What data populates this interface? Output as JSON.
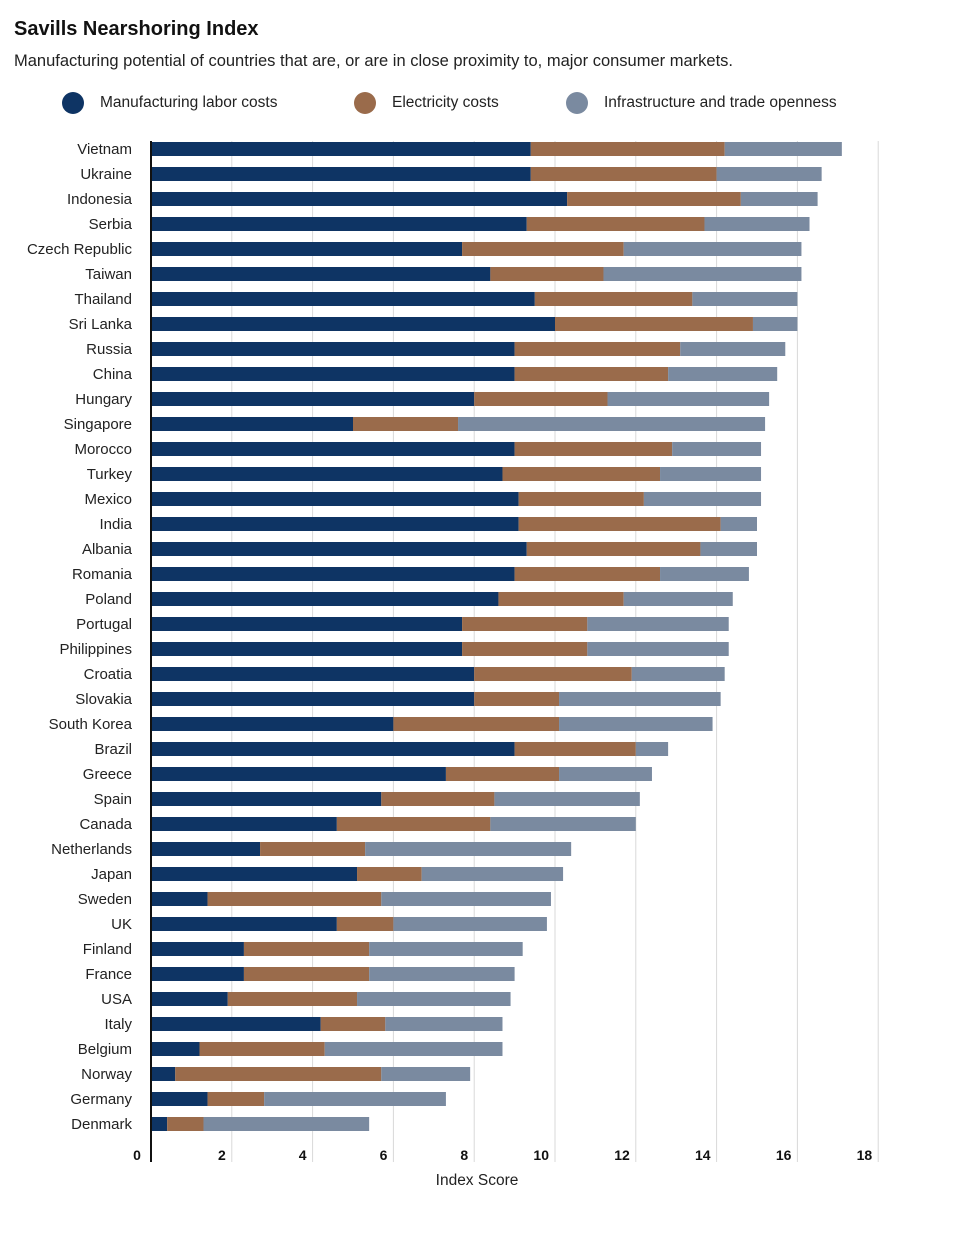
{
  "chart_data": {
    "type": "bar",
    "orientation": "horizontal",
    "stacked": true,
    "title": "Savills Nearshoring Index",
    "subtitle": "Manufacturing potential of countries that are, or are in close proximity to, major consumer markets.",
    "xlabel": "Index Score",
    "ylabel": "",
    "xlim": [
      0,
      18
    ],
    "xticks": [
      "0",
      "2",
      "4",
      "6",
      "8",
      "10",
      "12",
      "14",
      "16",
      "18"
    ],
    "grid": "vertical",
    "legend_position": "top",
    "categories": [
      "Vietnam",
      "Ukraine",
      "Indonesia",
      "Serbia",
      "Czech Republic",
      "Taiwan",
      "Thailand",
      "Sri Lanka",
      "Russia",
      "China",
      "Hungary",
      "Singapore",
      "Morocco",
      "Turkey",
      "Mexico",
      "India",
      "Albania",
      "Romania",
      "Poland",
      "Portugal",
      "Philippines",
      "Croatia",
      "Slovakia",
      "South Korea",
      "Brazil",
      "Greece",
      "Spain",
      "Canada",
      "Netherlands",
      "Japan",
      "Sweden",
      "UK",
      "Finland",
      "France",
      "USA",
      "Italy",
      "Belgium",
      "Norway",
      "Germany",
      "Denmark"
    ],
    "series": [
      {
        "name": "Manufacturing labor costs",
        "color": "#0e3464",
        "values": [
          9.4,
          9.4,
          10.3,
          9.3,
          7.7,
          8.4,
          9.5,
          10.0,
          9.0,
          9.0,
          8.0,
          5.0,
          9.0,
          8.7,
          9.1,
          9.1,
          9.3,
          9.0,
          8.6,
          7.7,
          7.7,
          8.0,
          8.0,
          6.0,
          9.0,
          7.3,
          5.7,
          4.6,
          2.7,
          5.1,
          1.4,
          4.6,
          2.3,
          2.3,
          1.9,
          4.2,
          1.2,
          0.6,
          1.4,
          0.4
        ]
      },
      {
        "name": "Electricity costs",
        "color": "#9a6b4b",
        "values": [
          4.8,
          4.6,
          4.3,
          4.4,
          4.0,
          2.8,
          3.9,
          4.9,
          4.1,
          3.8,
          3.3,
          2.6,
          3.9,
          3.9,
          3.1,
          5.0,
          4.3,
          3.6,
          3.1,
          3.1,
          3.1,
          3.9,
          2.1,
          4.1,
          3.0,
          2.8,
          2.8,
          3.8,
          2.6,
          1.6,
          4.3,
          1.4,
          3.1,
          3.1,
          3.2,
          1.6,
          3.1,
          5.1,
          1.4,
          0.9
        ]
      },
      {
        "name": "Infrastructure and trade openness",
        "color": "#7a8aa0",
        "values": [
          2.9,
          2.6,
          1.9,
          2.6,
          4.4,
          4.9,
          2.6,
          1.1,
          2.6,
          2.7,
          4.0,
          7.6,
          2.2,
          2.5,
          2.9,
          0.9,
          1.4,
          2.2,
          2.7,
          3.5,
          3.5,
          2.3,
          4.0,
          3.8,
          0.8,
          2.3,
          3.6,
          3.6,
          5.1,
          3.5,
          4.2,
          3.8,
          3.8,
          3.6,
          3.8,
          2.9,
          4.4,
          2.2,
          4.5,
          4.1
        ]
      }
    ]
  }
}
